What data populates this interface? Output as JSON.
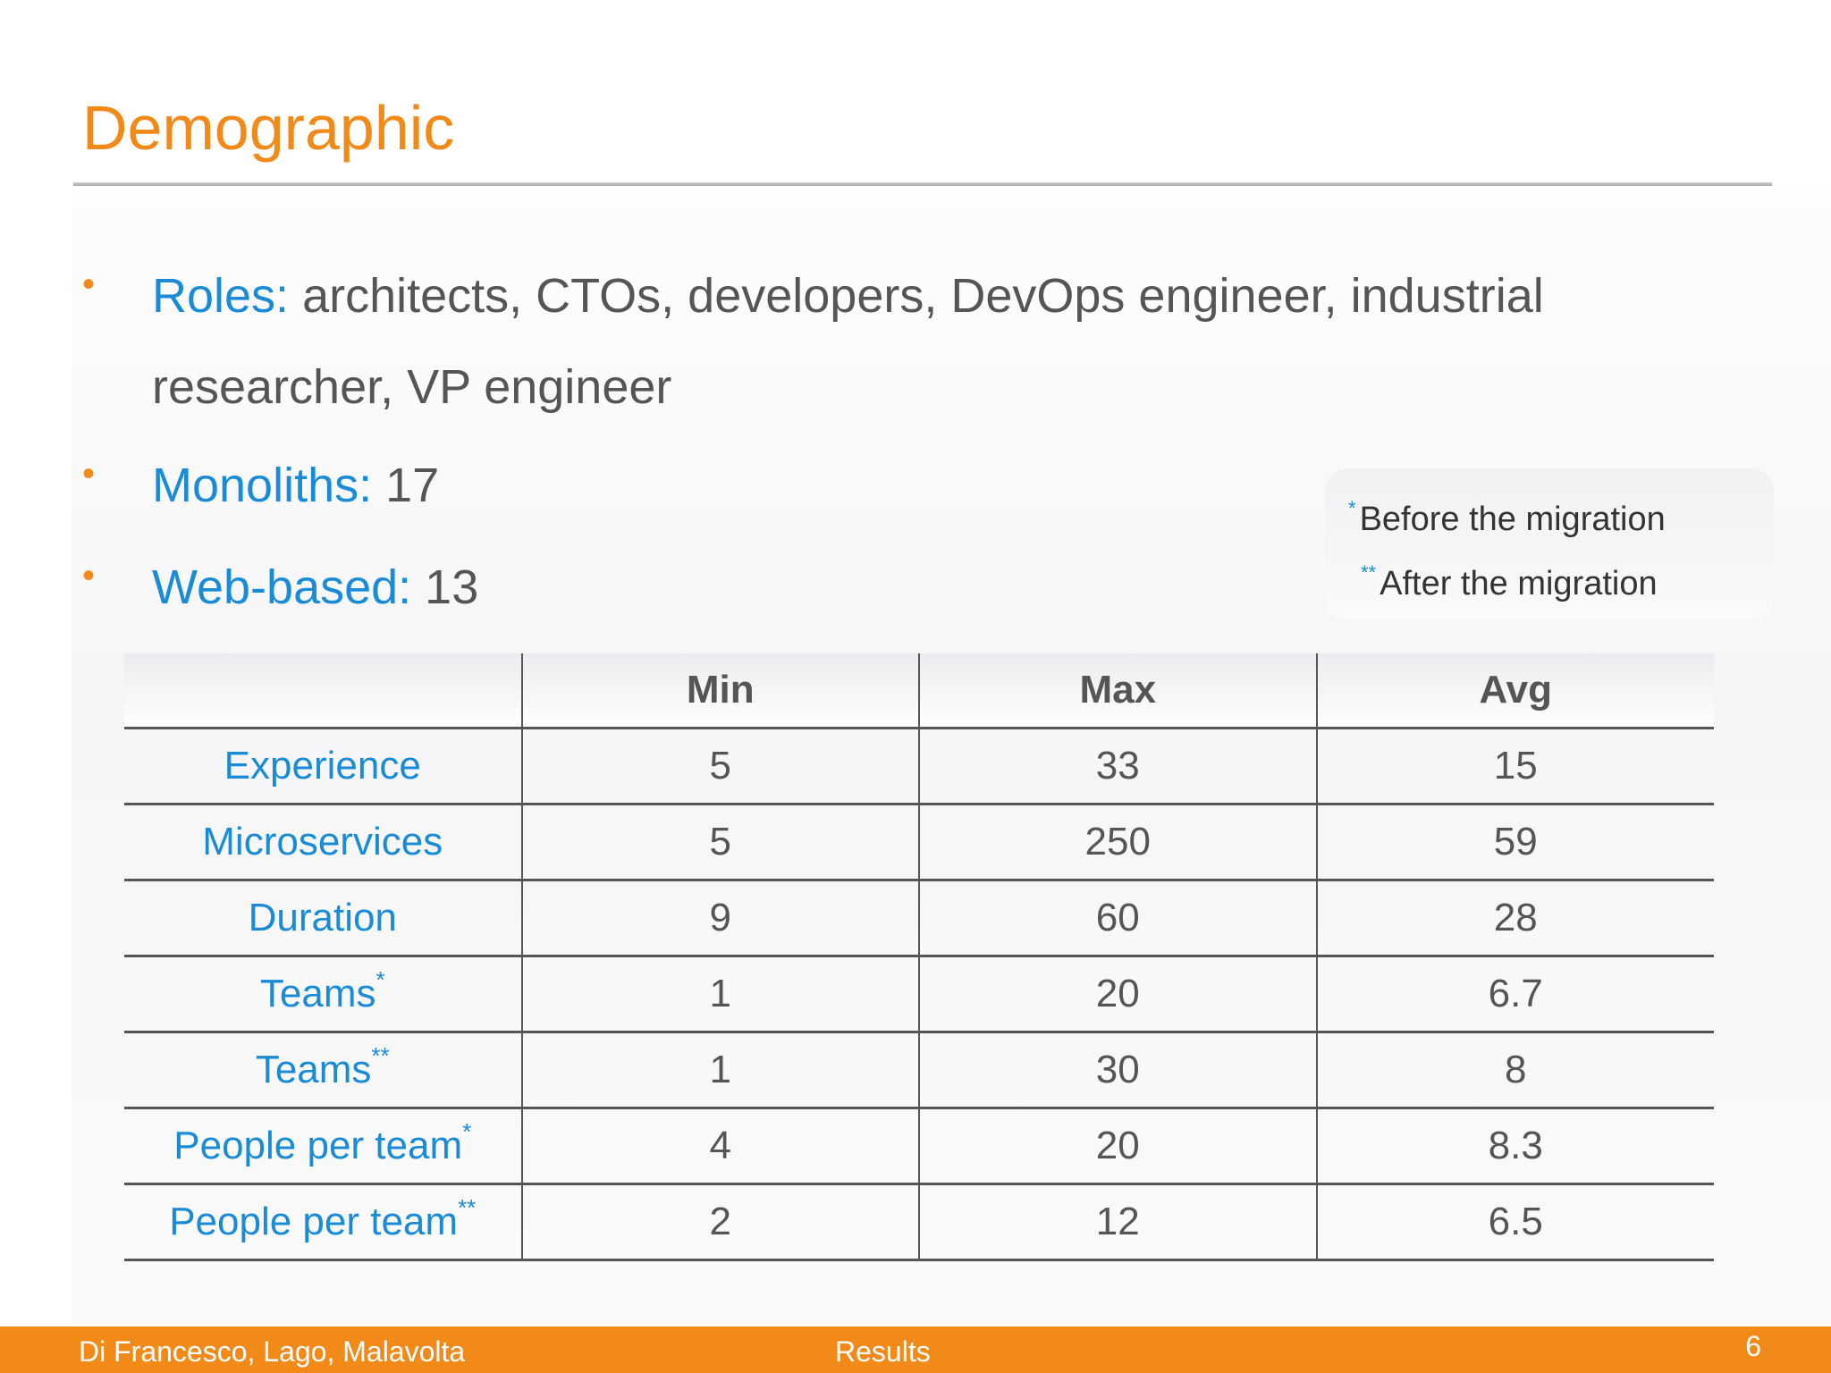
{
  "slide": {
    "title": "Demographic",
    "bullets": [
      {
        "key": "Roles:",
        "value": " architects, CTOs,  developers, DevOps engineer, industrial researcher, VP engineer"
      },
      {
        "key": "Monoliths:",
        "value": " 17"
      },
      {
        "key": "Web-based:",
        "value": " 13"
      }
    ],
    "bullet_marker": "•"
  },
  "legend": {
    "items": [
      {
        "mark": "*",
        "text": "Before the migration"
      },
      {
        "mark": "**",
        "text": "After the migration"
      }
    ]
  },
  "table": {
    "columns": [
      "",
      "Min",
      "Max",
      "Avg"
    ],
    "rows": [
      {
        "label": "Experience",
        "mark": "",
        "min": "5",
        "max": "33",
        "avg": "15"
      },
      {
        "label": "Microservices",
        "mark": "",
        "min": "5",
        "max": "250",
        "avg": "59"
      },
      {
        "label": "Duration",
        "mark": "",
        "min": "9",
        "max": "60",
        "avg": "28"
      },
      {
        "label": "Teams",
        "mark": "*",
        "min": "1",
        "max": "20",
        "avg": "6.7"
      },
      {
        "label": "Teams",
        "mark": "**",
        "min": "1",
        "max": "30",
        "avg": "8"
      },
      {
        "label": "People per team",
        "mark": "*",
        "min": "4",
        "max": "20",
        "avg": "8.3"
      },
      {
        "label": "People per team",
        "mark": "**",
        "min": "2",
        "max": "12",
        "avg": "6.5"
      }
    ]
  },
  "footer": {
    "authors": "Di Francesco, Lago, Malavolta",
    "section": "Results",
    "page": "6"
  },
  "colors": {
    "accent_orange": "#f28a1a",
    "accent_blue": "#1a8bd6",
    "text_gray": "#555555"
  }
}
